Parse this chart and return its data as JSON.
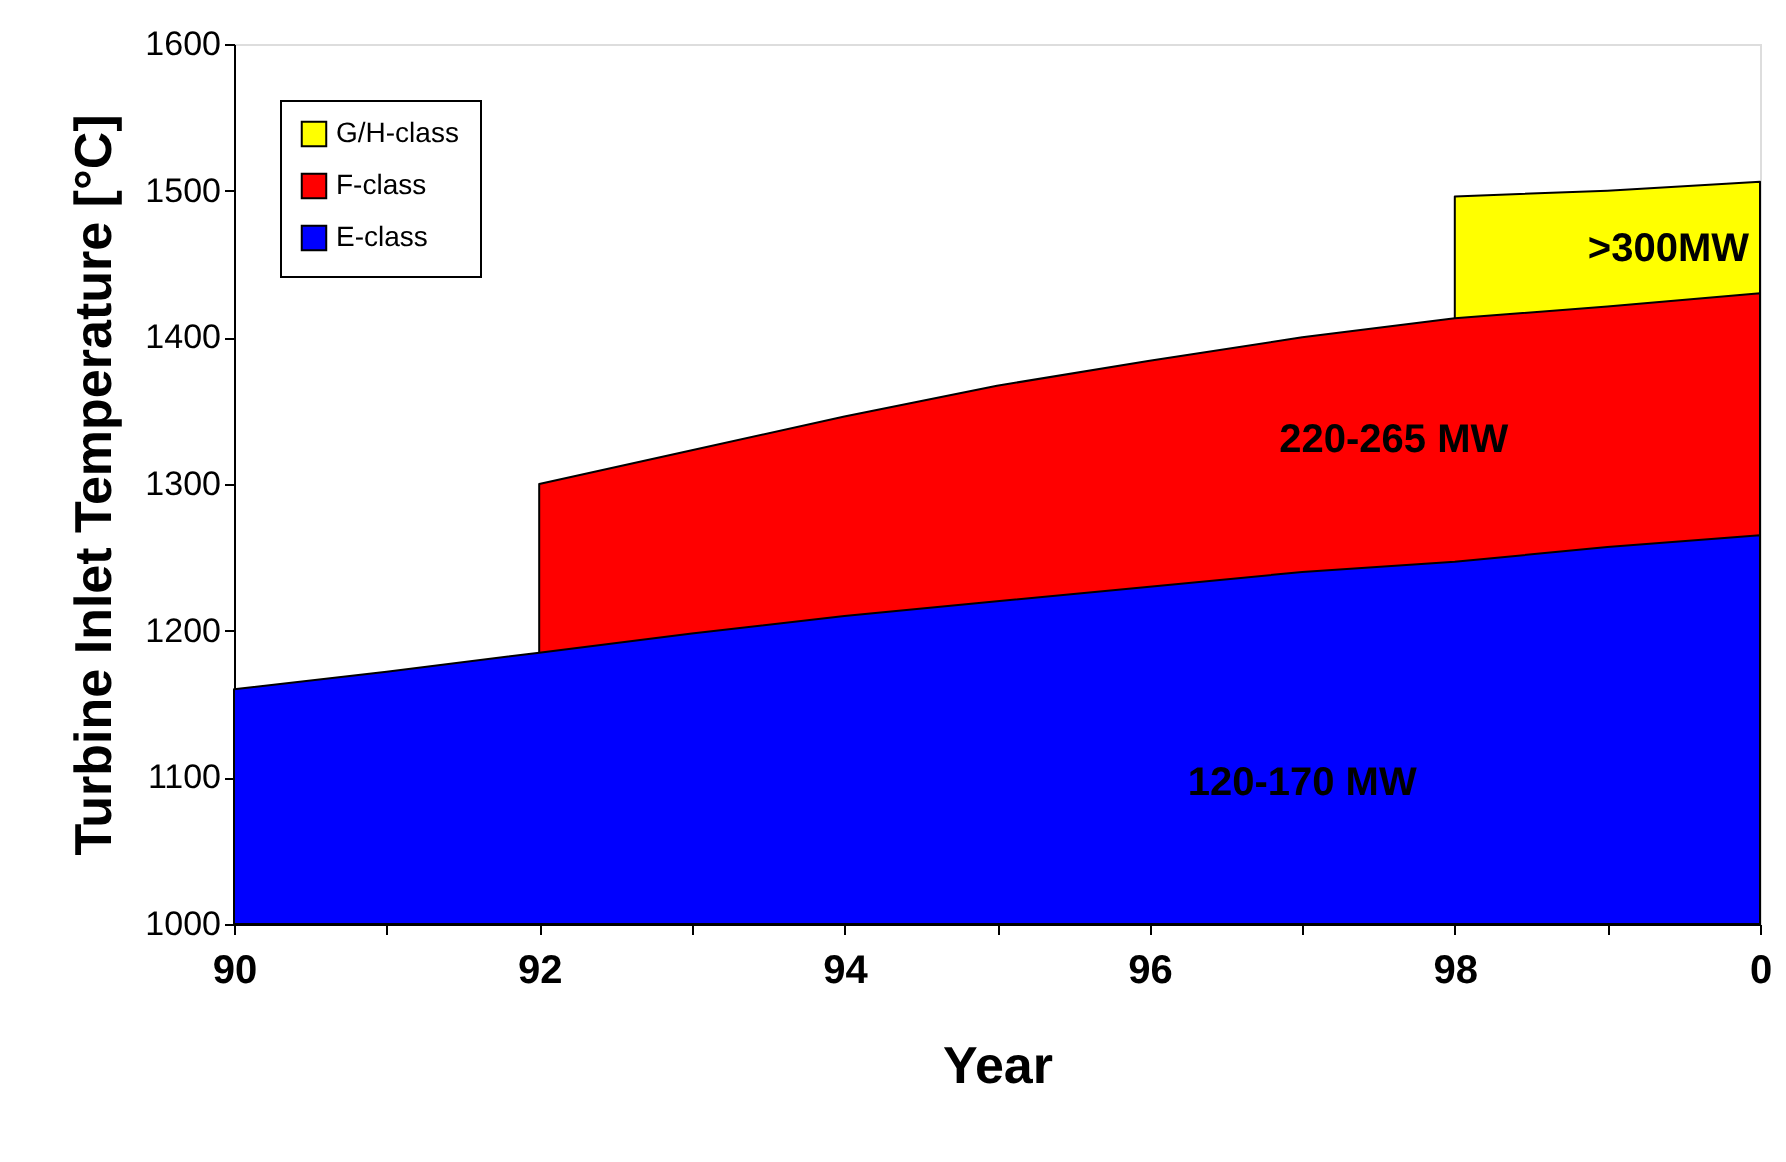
{
  "chart_data": {
    "type": "area",
    "xlabel": "Year",
    "ylabel": "Turbine Inlet Temperature [°C]",
    "ylim": [
      1000,
      1600
    ],
    "yticks": [
      1000,
      1100,
      1200,
      1300,
      1400,
      1500,
      1600
    ],
    "categories": [
      "90",
      null,
      "92",
      null,
      "94",
      null,
      "96",
      null,
      "98",
      null,
      "0"
    ],
    "series": [
      {
        "name": "E-class",
        "color": "#0000ff",
        "values": [
          1160,
          1172,
          1185,
          1198,
          1210,
          1220,
          1230,
          1240,
          1247,
          1257,
          1265
        ]
      },
      {
        "name": "F-class",
        "color": "#ff0000",
        "values": [
          null,
          null,
          1300,
          1323,
          1346,
          1367,
          1384,
          1400,
          1413,
          1421,
          1430
        ]
      },
      {
        "name": "G/H-class",
        "color": "#ffff00",
        "values": [
          null,
          null,
          null,
          null,
          null,
          null,
          null,
          null,
          1496,
          1500,
          1506
        ]
      }
    ],
    "annotations": [
      "120-170 MW",
      "220-265 MW",
      ">300MW"
    ],
    "legend": "top left",
    "grid": false
  }
}
